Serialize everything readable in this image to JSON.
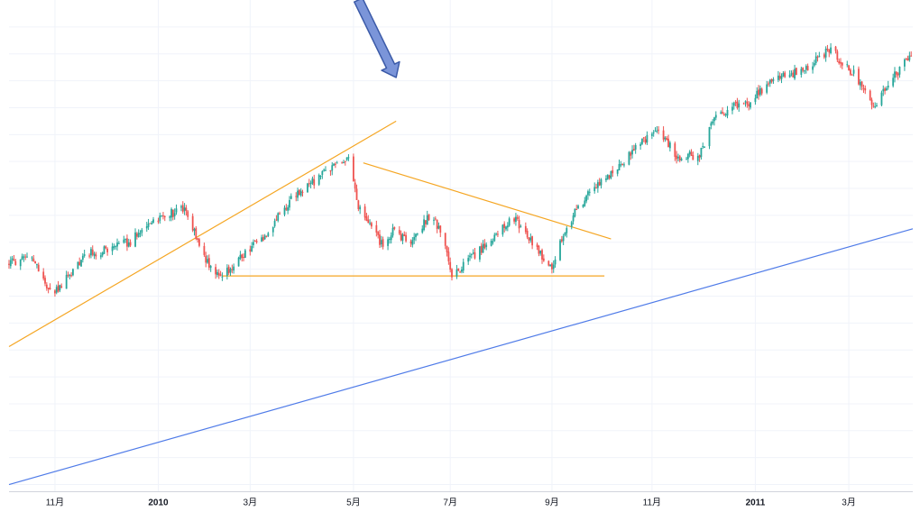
{
  "chart_data": {
    "type": "candlestick",
    "title": "",
    "xlabel": "",
    "ylabel": "",
    "grid": true,
    "colors": {
      "up": "#26a69a",
      "down": "#ef5350",
      "grid": "#f0f3fa",
      "axis": "#d1d4dc",
      "pattern_lines": "#f5a623",
      "trend_line": "#4f7be8",
      "arrow_fill": "#7b95d9",
      "arrow_stroke": "#3b5aa8"
    },
    "x_axis": {
      "tick_labels": [
        {
          "label": "11月",
          "date": "2009-11-02",
          "year": false
        },
        {
          "label": "2010",
          "date": "2010-01-04",
          "year": true
        },
        {
          "label": "3月",
          "date": "2010-03-01",
          "year": false
        },
        {
          "label": "5月",
          "date": "2010-05-03",
          "year": false
        },
        {
          "label": "7月",
          "date": "2010-07-01",
          "year": false
        },
        {
          "label": "9月",
          "date": "2010-09-01",
          "year": false
        },
        {
          "label": "11月",
          "date": "2010-11-01",
          "year": false
        },
        {
          "label": "2011",
          "date": "2011-01-03",
          "year": true
        },
        {
          "label": "3月",
          "date": "2011-03-01",
          "year": false
        }
      ],
      "range": [
        "2009-10-05",
        "2011-04-09"
      ]
    },
    "y_axis": {
      "range": [
        690,
        1420
      ],
      "visible_labels": false
    },
    "series_path": [
      [
        "2009-10-05",
        1030
      ],
      [
        "2009-10-20",
        1035
      ],
      [
        "2009-10-30",
        985
      ],
      [
        "2009-11-06",
        995
      ],
      [
        "2009-11-20",
        1042
      ],
      [
        "2009-12-04",
        1048
      ],
      [
        "2009-12-18",
        1062
      ],
      [
        "2010-01-01",
        1093
      ],
      [
        "2010-01-19",
        1110
      ],
      [
        "2010-02-05",
        1020
      ],
      [
        "2010-02-12",
        1010
      ],
      [
        "2010-02-26",
        1045
      ],
      [
        "2010-03-12",
        1075
      ],
      [
        "2010-03-26",
        1125
      ],
      [
        "2010-04-09",
        1150
      ],
      [
        "2010-04-23",
        1178
      ],
      [
        "2010-04-30",
        1185
      ],
      [
        "2010-05-06",
        1110
      ],
      [
        "2010-05-14",
        1080
      ],
      [
        "2010-05-21",
        1055
      ],
      [
        "2010-05-27",
        1075
      ],
      [
        "2010-06-07",
        1060
      ],
      [
        "2010-06-18",
        1100
      ],
      [
        "2010-06-25",
        1080
      ],
      [
        "2010-07-02",
        1010
      ],
      [
        "2010-07-16",
        1040
      ],
      [
        "2010-07-30",
        1075
      ],
      [
        "2010-08-09",
        1095
      ],
      [
        "2010-08-20",
        1060
      ],
      [
        "2010-08-31",
        1020
      ],
      [
        "2010-09-10",
        1085
      ],
      [
        "2010-09-24",
        1135
      ],
      [
        "2010-10-08",
        1165
      ],
      [
        "2010-10-22",
        1200
      ],
      [
        "2010-11-05",
        1230
      ],
      [
        "2010-11-16",
        1185
      ],
      [
        "2010-11-30",
        1190
      ],
      [
        "2010-12-10",
        1250
      ],
      [
        "2010-12-31",
        1270
      ],
      [
        "2011-01-14",
        1300
      ],
      [
        "2011-02-04",
        1320
      ],
      [
        "2011-02-18",
        1350
      ],
      [
        "2011-02-25",
        1325
      ],
      [
        "2011-03-04",
        1310
      ],
      [
        "2011-03-16",
        1260
      ],
      [
        "2011-03-25",
        1295
      ],
      [
        "2011-04-08",
        1340
      ]
    ],
    "annotations": [
      {
        "kind": "line",
        "role": "upper-rising-wedge-line",
        "from": [
          "2009-10-05",
          905
        ],
        "to": [
          "2010-05-29",
          1240
        ],
        "color": "#f5a623"
      },
      {
        "kind": "line",
        "role": "descending-resistance-line",
        "from": [
          "2010-05-09",
          1178
        ],
        "to": [
          "2010-10-07",
          1065
        ],
        "color": "#f5a623"
      },
      {
        "kind": "line",
        "role": "horizontal-support-line",
        "from": [
          "2010-02-12",
          1010
        ],
        "to": [
          "2010-10-03",
          1010
        ],
        "color": "#f5a623"
      },
      {
        "kind": "line",
        "role": "long-term-trend-line",
        "from": [
          "2009-10-05",
          700
        ],
        "to": [
          "2011-04-09",
          1080
        ],
        "color": "#4f7be8"
      },
      {
        "kind": "arrow",
        "role": "pointer-arrow",
        "from": [
          "2010-05-06",
          1420
        ],
        "to": [
          "2010-05-29",
          1305
        ],
        "color": "#7b95d9"
      }
    ]
  }
}
